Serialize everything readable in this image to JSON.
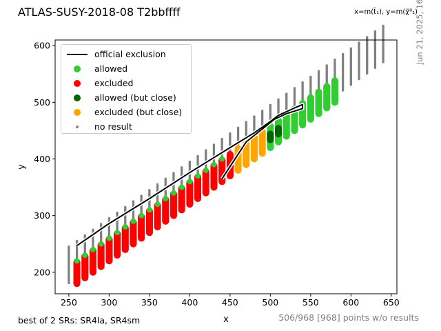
{
  "header": {
    "title": "ATLAS-SUSY-2018-08 T2bbffff",
    "axis_note": "x=m(t̃₁), y=m(χ̃⁰₁)"
  },
  "footer": {
    "signal_regions": "best of 2 SRs: SR4la, SR4sm",
    "points_summary": "506/968 [968] points w/o results"
  },
  "timestamp": "Jun 21, 2025, 16:38",
  "colors": {
    "allowed": "#32cd32",
    "excluded": "#ff0000",
    "allowed_close": "#006400",
    "excluded_close": "#ffa500",
    "no_result": "#808080",
    "official": "#000000"
  },
  "legend": {
    "items": [
      {
        "label": "official exclusion",
        "symbol": "line",
        "color_key": "official"
      },
      {
        "label": "allowed",
        "symbol": "dot",
        "color_key": "allowed"
      },
      {
        "label": "excluded",
        "symbol": "dot",
        "color_key": "excluded"
      },
      {
        "label": "allowed (but close)",
        "symbol": "dot",
        "color_key": "allowed_close"
      },
      {
        "label": "excluded (but close)",
        "symbol": "dot",
        "color_key": "excluded_close"
      },
      {
        "label": "no result",
        "symbol": "small",
        "color_key": "no_result"
      }
    ]
  },
  "chart_data": {
    "type": "scatter",
    "xlabel": "x",
    "ylabel": "y",
    "xlim": [
      233,
      657
    ],
    "ylim": [
      162,
      610
    ],
    "xticks": [
      250,
      300,
      350,
      400,
      450,
      500,
      550,
      600,
      650
    ],
    "yticks": [
      200,
      300,
      400,
      500,
      600
    ],
    "grid": false,
    "legend_position": "top-left",
    "point_bands": [
      {
        "x_start": 250,
        "x_end": 640,
        "x_step": 10,
        "dm_min": 5,
        "dm_max": 70,
        "dm_step": 2,
        "status": "no_result"
      },
      {
        "x_start": 260,
        "x_end": 580,
        "x_step": 10,
        "dm_min": 42,
        "dm_max": 80,
        "dm_step": 1,
        "status": "excluded",
        "until_x": 450
      },
      {
        "x_start": 260,
        "x_end": 580,
        "x_step": 10,
        "dm_min": 42,
        "dm_max": 80,
        "dm_step": 1,
        "status": "allowed",
        "from_x": 500
      },
      {
        "x_start": 460,
        "x_end": 490,
        "x_step": 10,
        "dm_min": 42,
        "dm_max": 80,
        "dm_step": 1,
        "status": "excluded_close"
      },
      {
        "x_start": 500,
        "x_end": 510,
        "x_step": 10,
        "dm_min": 56,
        "dm_max": 66,
        "dm_step": 1,
        "status": "allowed_close"
      }
    ],
    "upper_edge_allowed_dm": 40,
    "official_exclusion": {
      "x": [
        260,
        300,
        350,
        400,
        450,
        480,
        500,
        510,
        530,
        540,
        540,
        520,
        505,
        470,
        440
      ],
      "y": [
        247,
        286,
        330,
        376,
        420,
        446,
        466,
        477,
        490,
        496,
        489,
        480,
        470,
        430,
        365
      ]
    }
  }
}
